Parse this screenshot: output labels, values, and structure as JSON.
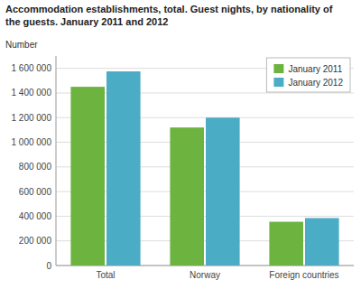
{
  "chart_data": {
    "type": "bar",
    "title": [
      "Accommodation establishments, total. Guest nights, by nationality of",
      "the guests. January  2011 and 2012"
    ],
    "ylabel": "Number",
    "categories": [
      "Total",
      "Norway",
      "Foreign countries"
    ],
    "series": [
      {
        "name": "January 2011",
        "color": "#6db33f",
        "values": [
          1450000,
          1120000,
          355000
        ]
      },
      {
        "name": "January 2012",
        "color": "#4bacc6",
        "values": [
          1575000,
          1200000,
          385000
        ]
      }
    ],
    "ylim": [
      0,
      1700000
    ],
    "yticks": [
      0,
      {
        "value": 200000,
        "label": "200 000"
      },
      {
        "value": 400000,
        "label": "400 000"
      },
      {
        "value": 600000,
        "label": "600 000"
      },
      {
        "value": 800000,
        "label": "800 000"
      },
      {
        "value": 1000000,
        "label": "1 000 000"
      },
      {
        "value": 1200000,
        "label": "1 200 000"
      },
      {
        "value": 1400000,
        "label": "1 400 000"
      },
      {
        "value": 1600000,
        "label": "1 600 000"
      }
    ],
    "grid": true,
    "legend": "upper right"
  }
}
